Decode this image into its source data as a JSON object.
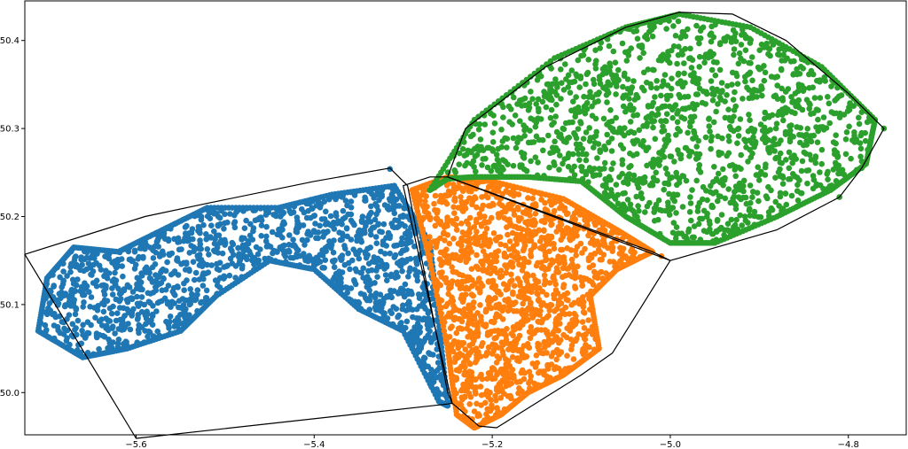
{
  "chart_data": {
    "type": "scatter",
    "title": "",
    "xlabel": "",
    "ylabel": "",
    "xlim": [
      -5.725,
      -4.735
    ],
    "ylim": [
      49.952,
      50.445
    ],
    "grid": false,
    "legend": "none",
    "x_ticks": [
      {
        "value": -5.6,
        "label": "−5.6"
      },
      {
        "value": -5.4,
        "label": "−5.4"
      },
      {
        "value": -5.2,
        "label": "−5.2"
      },
      {
        "value": -5.0,
        "label": "−5.0"
      },
      {
        "value": -4.8,
        "label": "−4.8"
      }
    ],
    "y_ticks": [
      {
        "value": 50.0,
        "label": "50.0"
      },
      {
        "value": 50.1,
        "label": "50.1"
      },
      {
        "value": 50.2,
        "label": "50.2"
      },
      {
        "value": 50.3,
        "label": "50.3"
      },
      {
        "value": 50.4,
        "label": "50.4"
      }
    ],
    "series": [
      {
        "color": "#1f77b4",
        "region": [
          [
            -5.71,
            50.07
          ],
          [
            -5.7,
            50.13
          ],
          [
            -5.67,
            50.165
          ],
          [
            -5.62,
            50.16
          ],
          [
            -5.57,
            50.185
          ],
          [
            -5.52,
            50.21
          ],
          [
            -5.44,
            50.21
          ],
          [
            -5.38,
            50.225
          ],
          [
            -5.31,
            50.235
          ],
          [
            -5.27,
            50.17
          ],
          [
            -5.26,
            50.08
          ],
          [
            -5.25,
            49.985
          ],
          [
            -5.26,
            49.99
          ],
          [
            -5.3,
            50.07
          ],
          [
            -5.35,
            50.095
          ],
          [
            -5.4,
            50.14
          ],
          [
            -5.45,
            50.15
          ],
          [
            -5.51,
            50.11
          ],
          [
            -5.55,
            50.07
          ],
          [
            -5.61,
            50.05
          ],
          [
            -5.66,
            50.04
          ]
        ],
        "hull": [
          [
            -5.725,
            50.157
          ],
          [
            -5.59,
            50.2
          ],
          [
            -5.52,
            50.215
          ],
          [
            -5.4,
            50.24
          ],
          [
            -5.315,
            50.255
          ],
          [
            -5.295,
            50.235
          ],
          [
            -5.25,
            50.0
          ],
          [
            -5.245,
            49.988
          ],
          [
            -5.25,
            49.987
          ],
          [
            -5.6,
            49.948
          ]
        ],
        "points": [
          [
            -5.315,
            50.254
          ],
          [
            -5.245,
            49.99
          ],
          [
            -5.26,
            50.0
          ]
        ]
      },
      {
        "color": "#ff7f0e",
        "region": [
          [
            -5.29,
            50.23
          ],
          [
            -5.25,
            50.245
          ],
          [
            -5.2,
            50.24
          ],
          [
            -5.12,
            50.22
          ],
          [
            -5.06,
            50.185
          ],
          [
            -5.02,
            50.16
          ],
          [
            -5.06,
            50.14
          ],
          [
            -5.09,
            50.11
          ],
          [
            -5.08,
            50.05
          ],
          [
            -5.12,
            50.02
          ],
          [
            -5.16,
            50.0
          ],
          [
            -5.19,
            49.975
          ],
          [
            -5.22,
            49.96
          ],
          [
            -5.24,
            49.975
          ],
          [
            -5.25,
            50.05
          ],
          [
            -5.27,
            50.15
          ]
        ],
        "hull": [
          [
            -5.3,
            50.235
          ],
          [
            -5.27,
            50.245
          ],
          [
            -5.25,
            50.245
          ],
          [
            -5.02,
            50.16
          ],
          [
            -5.0,
            50.15
          ],
          [
            -5.065,
            50.045
          ],
          [
            -5.1,
            50.02
          ],
          [
            -5.195,
            49.96
          ],
          [
            -5.215,
            49.962
          ],
          [
            -5.245,
            49.988
          ],
          [
            -5.27,
            50.1
          ]
        ],
        "points": [
          [
            -5.01,
            50.155
          ],
          [
            -5.04,
            50.17
          ],
          [
            -5.22,
            49.962
          ]
        ]
      },
      {
        "color": "#2ca02c",
        "region": [
          [
            -5.27,
            50.23
          ],
          [
            -5.22,
            50.31
          ],
          [
            -5.13,
            50.38
          ],
          [
            -5.05,
            50.415
          ],
          [
            -4.99,
            50.43
          ],
          [
            -4.91,
            50.415
          ],
          [
            -4.83,
            50.37
          ],
          [
            -4.77,
            50.31
          ],
          [
            -4.78,
            50.26
          ],
          [
            -4.82,
            50.23
          ],
          [
            -4.88,
            50.2
          ],
          [
            -4.95,
            50.17
          ],
          [
            -5.0,
            50.17
          ],
          [
            -5.05,
            50.2
          ],
          [
            -5.1,
            50.24
          ],
          [
            -5.16,
            50.245
          ],
          [
            -5.22,
            50.245
          ],
          [
            -5.25,
            50.243
          ]
        ],
        "hull": [
          [
            -5.25,
            50.245
          ],
          [
            -5.23,
            50.3
          ],
          [
            -5.14,
            50.37
          ],
          [
            -5.05,
            50.415
          ],
          [
            -4.99,
            50.432
          ],
          [
            -4.93,
            50.43
          ],
          [
            -4.87,
            50.4
          ],
          [
            -4.8,
            50.34
          ],
          [
            -4.76,
            50.3
          ],
          [
            -4.785,
            50.255
          ],
          [
            -4.81,
            50.222
          ],
          [
            -4.88,
            50.185
          ],
          [
            -5.0,
            50.15
          ]
        ],
        "points": [
          [
            -4.76,
            50.3
          ],
          [
            -4.81,
            50.222
          ],
          [
            -4.785,
            50.255
          ]
        ]
      }
    ]
  }
}
